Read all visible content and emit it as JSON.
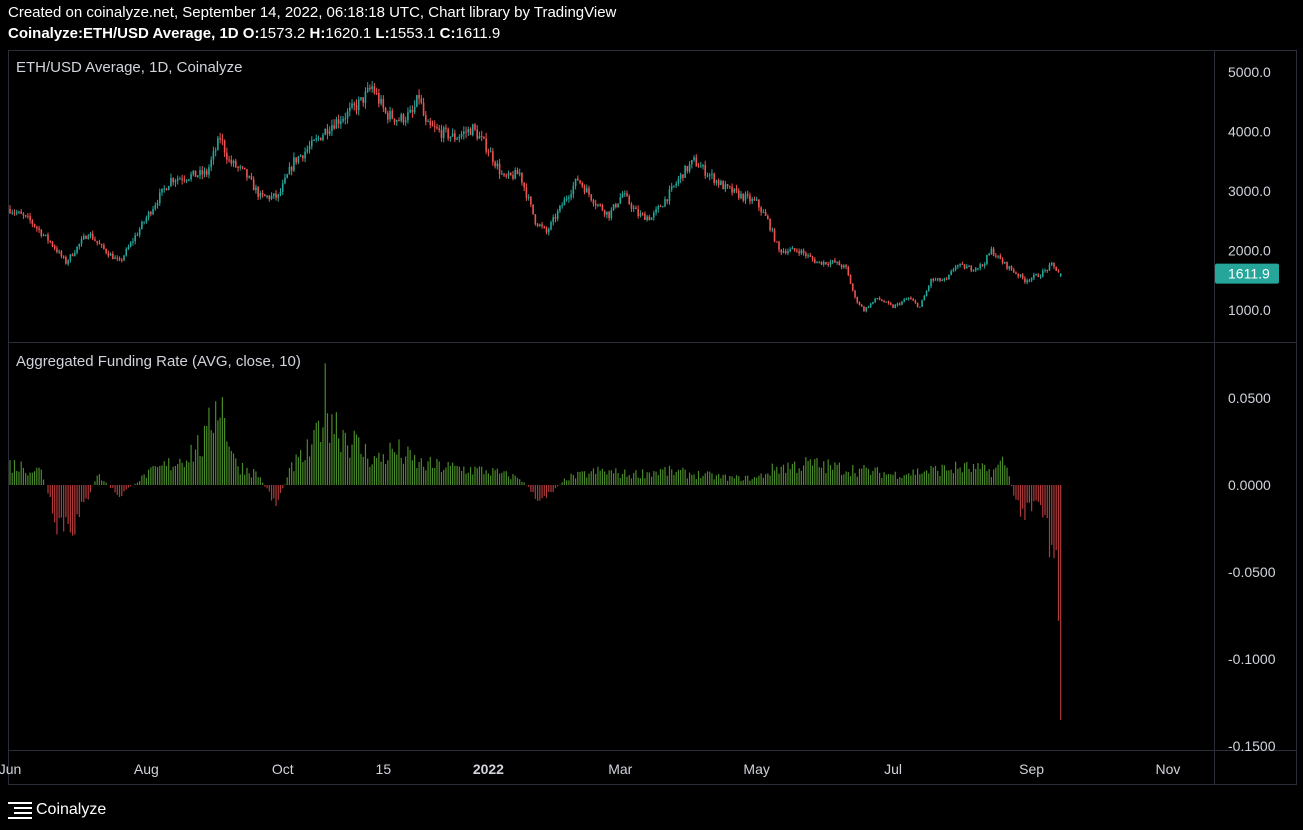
{
  "header": {
    "line1": "Created on coinalyze.net, September 14, 2022, 06:18:18 UTC, Chart library by TradingView",
    "symbol": "Coinalyze:ETH/USD Average, 1D",
    "o_label": "O:",
    "o_value": "1573.2",
    "h_label": "H:",
    "h_value": "1620.1",
    "l_label": "L:",
    "l_value": "1553.1",
    "c_label": "C:",
    "c_value": "1611.9"
  },
  "footer": {
    "brand": "Coinalyze",
    "icon": "menu-lines-icon"
  },
  "colors": {
    "background": "#000000",
    "grid_border": "#2a2e39",
    "up": "#26a69a",
    "down": "#ef5350",
    "funding_up": "#4a8a2a",
    "funding_down": "#b13a3a",
    "axis_text": "#d1d4dc",
    "last_price_bg": "#26a69a"
  },
  "chart_data": [
    {
      "type": "candlestick",
      "title": "ETH/USD Average, 1D, Coinalyze",
      "ylim": [
        700,
        5250
      ],
      "y_ticks": [
        "5000.0",
        "4000.0",
        "3000.0",
        "2000.0",
        "1000.0"
      ],
      "last_price": "1611.9",
      "x_tick_labels": [
        "Jun",
        "Aug",
        "Oct",
        "15",
        "2022",
        "Mar",
        "May",
        "Jul",
        "Sep",
        "Nov"
      ],
      "approx_close_path": [
        [
          "2021-06-01",
          2700
        ],
        [
          "2021-06-10",
          2500
        ],
        [
          "2021-06-20",
          2100
        ],
        [
          "2021-06-26",
          1800
        ],
        [
          "2021-07-06",
          2300
        ],
        [
          "2021-07-12",
          2050
        ],
        [
          "2021-07-20",
          1800
        ],
        [
          "2021-07-28",
          2300
        ],
        [
          "2021-08-05",
          2800
        ],
        [
          "2021-08-12",
          3200
        ],
        [
          "2021-08-20",
          3250
        ],
        [
          "2021-08-28",
          3300
        ],
        [
          "2021-09-03",
          3900
        ],
        [
          "2021-09-07",
          3500
        ],
        [
          "2021-09-14",
          3300
        ],
        [
          "2021-09-21",
          2900
        ],
        [
          "2021-09-29",
          2900
        ],
        [
          "2021-10-06",
          3500
        ],
        [
          "2021-10-15",
          3800
        ],
        [
          "2021-10-22",
          4100
        ],
        [
          "2021-10-30",
          4300
        ],
        [
          "2021-11-05",
          4500
        ],
        [
          "2021-11-10",
          4750
        ],
        [
          "2021-11-16",
          4300
        ],
        [
          "2021-11-22",
          4200
        ],
        [
          "2021-11-28",
          4300
        ],
        [
          "2021-12-01",
          4600
        ],
        [
          "2021-12-04",
          4100
        ],
        [
          "2021-12-10",
          4000
        ],
        [
          "2021-12-17",
          3900
        ],
        [
          "2021-12-25",
          4050
        ],
        [
          "2022-01-01",
          3700
        ],
        [
          "2022-01-08",
          3200
        ],
        [
          "2022-01-15",
          3300
        ],
        [
          "2022-01-22",
          2500
        ],
        [
          "2022-01-27",
          2300
        ],
        [
          "2022-02-05",
          2900
        ],
        [
          "2022-02-10",
          3200
        ],
        [
          "2022-02-18",
          2800
        ],
        [
          "2022-02-24",
          2600
        ],
        [
          "2022-03-02",
          2950
        ],
        [
          "2022-03-09",
          2600
        ],
        [
          "2022-03-15",
          2550
        ],
        [
          "2022-03-22",
          2900
        ],
        [
          "2022-03-29",
          3300
        ],
        [
          "2022-04-03",
          3500
        ],
        [
          "2022-04-09",
          3300
        ],
        [
          "2022-04-17",
          3050
        ],
        [
          "2022-04-25",
          2900
        ],
        [
          "2022-05-01",
          2800
        ],
        [
          "2022-05-06",
          2500
        ],
        [
          "2022-05-11",
          2000
        ],
        [
          "2022-05-20",
          2000
        ],
        [
          "2022-05-28",
          1800
        ],
        [
          "2022-06-05",
          1800
        ],
        [
          "2022-06-10",
          1700
        ],
        [
          "2022-06-14",
          1200
        ],
        [
          "2022-06-18",
          1000
        ],
        [
          "2022-06-24",
          1200
        ],
        [
          "2022-07-01",
          1050
        ],
        [
          "2022-07-08",
          1200
        ],
        [
          "2022-07-13",
          1050
        ],
        [
          "2022-07-18",
          1500
        ],
        [
          "2022-07-25",
          1500
        ],
        [
          "2022-07-29",
          1750
        ],
        [
          "2022-08-05",
          1700
        ],
        [
          "2022-08-10",
          1750
        ],
        [
          "2022-08-14",
          2000
        ],
        [
          "2022-08-19",
          1800
        ],
        [
          "2022-08-24",
          1650
        ],
        [
          "2022-08-29",
          1500
        ],
        [
          "2022-09-05",
          1600
        ],
        [
          "2022-09-10",
          1750
        ],
        [
          "2022-09-14",
          1611.9
        ]
      ]
    },
    {
      "type": "bar",
      "title": "Aggregated Funding Rate (AVG, close, 10)",
      "ylim": [
        -0.155,
        0.062
      ],
      "y_ticks": [
        "0.0500",
        "0.0000",
        "-0.0500",
        "-0.1000",
        "-0.1500"
      ],
      "approx_values": [
        [
          "2021-06-01",
          0.012
        ],
        [
          "2021-06-15",
          0.008
        ],
        [
          "2021-06-22",
          -0.02
        ],
        [
          "2021-07-01",
          -0.022
        ],
        [
          "2021-07-10",
          0.006
        ],
        [
          "2021-07-20",
          -0.006
        ],
        [
          "2021-08-01",
          0.006
        ],
        [
          "2021-08-15",
          0.014
        ],
        [
          "2021-08-28",
          0.025
        ],
        [
          "2021-09-02",
          0.055
        ],
        [
          "2021-09-10",
          0.012
        ],
        [
          "2021-09-20",
          0.006
        ],
        [
          "2021-09-28",
          -0.012
        ],
        [
          "2021-10-05",
          0.01
        ],
        [
          "2021-10-15",
          0.022
        ],
        [
          "2021-10-20",
          0.05
        ],
        [
          "2021-10-25",
          0.035
        ],
        [
          "2021-11-05",
          0.02
        ],
        [
          "2021-11-12",
          0.014
        ],
        [
          "2021-11-20",
          0.02
        ],
        [
          "2021-12-01",
          0.012
        ],
        [
          "2021-12-15",
          0.01
        ],
        [
          "2022-01-01",
          0.008
        ],
        [
          "2022-01-15",
          0.004
        ],
        [
          "2022-01-25",
          -0.01
        ],
        [
          "2022-02-05",
          0.004
        ],
        [
          "2022-02-20",
          0.008
        ],
        [
          "2022-03-05",
          0.006
        ],
        [
          "2022-03-20",
          0.008
        ],
        [
          "2022-04-05",
          0.006
        ],
        [
          "2022-04-20",
          0.004
        ],
        [
          "2022-05-01",
          0.004
        ],
        [
          "2022-05-10",
          0.01
        ],
        [
          "2022-05-25",
          0.012
        ],
        [
          "2022-06-05",
          0.01
        ],
        [
          "2022-06-20",
          0.008
        ],
        [
          "2022-07-01",
          0.006
        ],
        [
          "2022-07-15",
          0.008
        ],
        [
          "2022-08-01",
          0.01
        ],
        [
          "2022-08-15",
          0.008
        ],
        [
          "2022-08-20",
          0.014
        ],
        [
          "2022-08-25",
          -0.01
        ],
        [
          "2022-08-30",
          -0.018
        ],
        [
          "2022-09-04",
          -0.01
        ],
        [
          "2022-09-08",
          -0.025
        ],
        [
          "2022-09-10",
          -0.045
        ],
        [
          "2022-09-12",
          -0.06
        ],
        [
          "2022-09-14",
          -0.135
        ]
      ]
    }
  ]
}
